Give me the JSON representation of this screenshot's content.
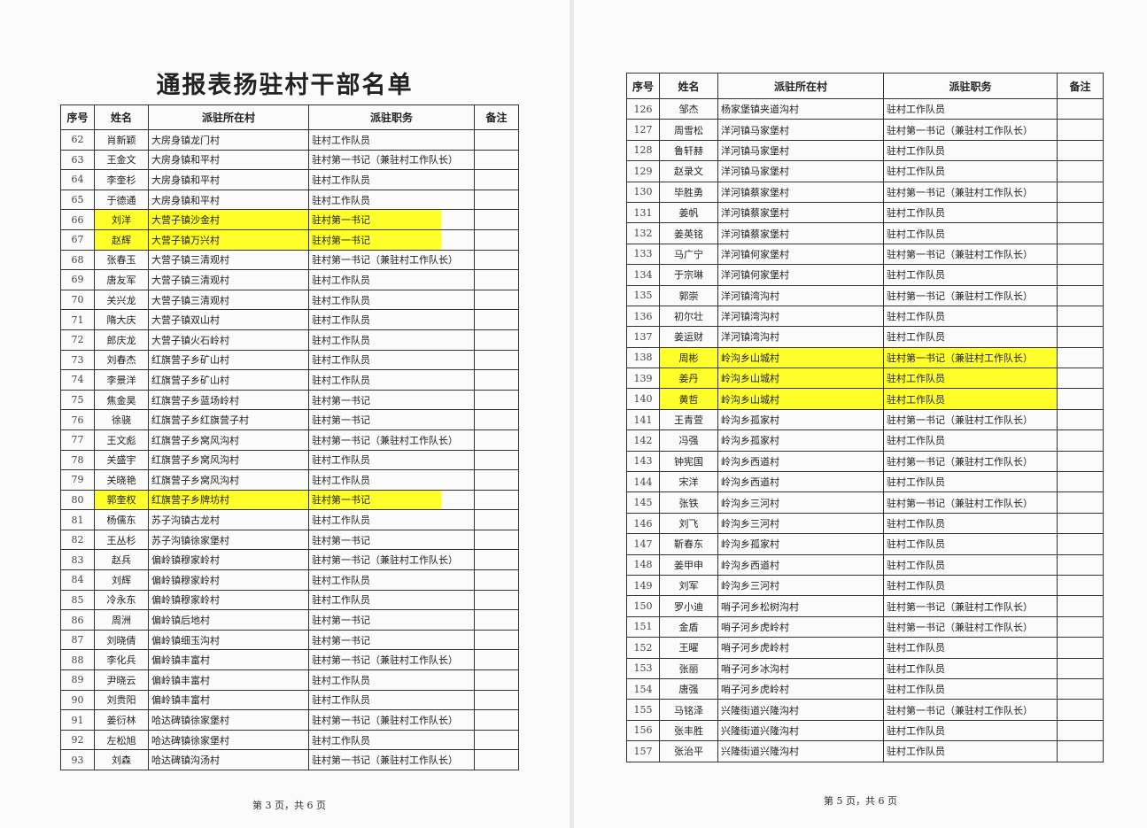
{
  "title": "通报表扬驻村干部名单",
  "headers": {
    "seq": "序号",
    "name": "姓名",
    "village": "派驻所在村",
    "duty": "派驻职务",
    "note": "备注"
  },
  "highlight_color": "#ffff2a",
  "left_page": {
    "footer": "第 3 页，共 6 页",
    "rows": [
      {
        "seq": "62",
        "name": "肖新颖",
        "village": "大房身镇龙门村",
        "duty": "驻村工作队员",
        "highlighted": false
      },
      {
        "seq": "63",
        "name": "王金文",
        "village": "大房身镇和平村",
        "duty": "驻村第一书记（兼驻村工作队长）",
        "highlighted": false
      },
      {
        "seq": "64",
        "name": "李奎杉",
        "village": "大房身镇和平村",
        "duty": "驻村工作队员",
        "highlighted": false
      },
      {
        "seq": "65",
        "name": "于德通",
        "village": "大房身镇和平村",
        "duty": "驻村工作队员",
        "highlighted": false
      },
      {
        "seq": "66",
        "name": "刘洋",
        "village": "大营子镇沙金村",
        "duty": "驻村第一书记",
        "highlighted": true
      },
      {
        "seq": "67",
        "name": "赵辉",
        "village": "大营子镇万兴村",
        "duty": "驻村第一书记",
        "highlighted": true
      },
      {
        "seq": "68",
        "name": "张春玉",
        "village": "大营子镇三清观村",
        "duty": "驻村第一书记（兼驻村工作队长）",
        "highlighted": false
      },
      {
        "seq": "69",
        "name": "唐友军",
        "village": "大营子镇三清观村",
        "duty": "驻村工作队员",
        "highlighted": false
      },
      {
        "seq": "70",
        "name": "关兴龙",
        "village": "大营子镇三清观村",
        "duty": "驻村工作队员",
        "highlighted": false
      },
      {
        "seq": "71",
        "name": "隋大庆",
        "village": "大营子镇双山村",
        "duty": "驻村工作队员",
        "highlighted": false
      },
      {
        "seq": "72",
        "name": "郎庆龙",
        "village": "大营子镇火石岭村",
        "duty": "驻村工作队员",
        "highlighted": false
      },
      {
        "seq": "73",
        "name": "刘春杰",
        "village": "红旗营子乡矿山村",
        "duty": "驻村工作队员",
        "highlighted": false
      },
      {
        "seq": "74",
        "name": "李景洋",
        "village": "红旗营子乡矿山村",
        "duty": "驻村工作队员",
        "highlighted": false
      },
      {
        "seq": "75",
        "name": "焦金昊",
        "village": "红旗营子乡蓝场岭村",
        "duty": "驻村第一书记",
        "highlighted": false
      },
      {
        "seq": "76",
        "name": "徐骁",
        "village": "红旗营子乡红旗营子村",
        "duty": "驻村第一书记",
        "highlighted": false
      },
      {
        "seq": "77",
        "name": "王文彪",
        "village": "红旗营子乡窝风沟村",
        "duty": "驻村第一书记（兼驻村工作队长）",
        "highlighted": false
      },
      {
        "seq": "78",
        "name": "关盛宇",
        "village": "红旗营子乡窝风沟村",
        "duty": "驻村工作队员",
        "highlighted": false
      },
      {
        "seq": "79",
        "name": "关晓艳",
        "village": "红旗营子乡窝风沟村",
        "duty": "驻村工作队员",
        "highlighted": false
      },
      {
        "seq": "80",
        "name": "郭奎权",
        "village": "红旗营子乡牌坊村",
        "duty": "驻村第一书记",
        "highlighted": true
      },
      {
        "seq": "81",
        "name": "杨儒东",
        "village": "苏子沟镇古龙村",
        "duty": "驻村工作队员",
        "highlighted": false
      },
      {
        "seq": "82",
        "name": "王丛杉",
        "village": "苏子沟镇徐家堡村",
        "duty": "驻村第一书记",
        "highlighted": false
      },
      {
        "seq": "83",
        "name": "赵兵",
        "village": "偏岭镇穆家岭村",
        "duty": "驻村第一书记（兼驻村工作队长）",
        "highlighted": false
      },
      {
        "seq": "84",
        "name": "刘辉",
        "village": "偏岭镇穆家岭村",
        "duty": "驻村工作队员",
        "highlighted": false
      },
      {
        "seq": "85",
        "name": "冷永东",
        "village": "偏岭镇穆家岭村",
        "duty": "驻村工作队员",
        "highlighted": false
      },
      {
        "seq": "86",
        "name": "周洲",
        "village": "偏岭镇后地村",
        "duty": "驻村第一书记",
        "highlighted": false
      },
      {
        "seq": "87",
        "name": "刘晓倩",
        "village": "偏岭镇细玉沟村",
        "duty": "驻村第一书记",
        "highlighted": false
      },
      {
        "seq": "88",
        "name": "李化兵",
        "village": "偏岭镇丰富村",
        "duty": "驻村第一书记（兼驻村工作队长）",
        "highlighted": false
      },
      {
        "seq": "89",
        "name": "尹晓云",
        "village": "偏岭镇丰富村",
        "duty": "驻村工作队员",
        "highlighted": false
      },
      {
        "seq": "90",
        "name": "刘贵阳",
        "village": "偏岭镇丰富村",
        "duty": "驻村工作队员",
        "highlighted": false
      },
      {
        "seq": "91",
        "name": "姜衍林",
        "village": "哈达碑镇徐家堡村",
        "duty": "驻村第一书记（兼驻村工作队长）",
        "highlighted": false
      },
      {
        "seq": "92",
        "name": "左松旭",
        "village": "哈达碑镇徐家堡村",
        "duty": "驻村工作队员",
        "highlighted": false
      },
      {
        "seq": "93",
        "name": "刘森",
        "village": "哈达碑镇沟汤村",
        "duty": "驻村第一书记（兼驻村工作队长）",
        "highlighted": false
      }
    ]
  },
  "right_page": {
    "footer": "第 5 页，共 6 页",
    "rows": [
      {
        "seq": "126",
        "name": "邹杰",
        "village": "杨家堡镇夹道沟村",
        "duty": "驻村工作队员",
        "highlighted": false
      },
      {
        "seq": "127",
        "name": "周雪松",
        "village": "洋河镇马家堡村",
        "duty": "驻村第一书记（兼驻村工作队长）",
        "highlighted": false
      },
      {
        "seq": "128",
        "name": "鲁轩赫",
        "village": "洋河镇马家堡村",
        "duty": "驻村工作队员",
        "highlighted": false
      },
      {
        "seq": "129",
        "name": "赵录文",
        "village": "洋河镇马家堡村",
        "duty": "驻村工作队员",
        "highlighted": false
      },
      {
        "seq": "130",
        "name": "毕胜勇",
        "village": "洋河镇蔡家堡村",
        "duty": "驻村第一书记（兼驻村工作队长）",
        "highlighted": false
      },
      {
        "seq": "131",
        "name": "姜帆",
        "village": "洋河镇蔡家堡村",
        "duty": "驻村工作队员",
        "highlighted": false
      },
      {
        "seq": "132",
        "name": "姜英铭",
        "village": "洋河镇蔡家堡村",
        "duty": "驻村工作队员",
        "highlighted": false
      },
      {
        "seq": "133",
        "name": "马广宁",
        "village": "洋河镇何家堡村",
        "duty": "驻村第一书记（兼驻村工作队长）",
        "highlighted": false
      },
      {
        "seq": "134",
        "name": "于宗琳",
        "village": "洋河镇何家堡村",
        "duty": "驻村工作队员",
        "highlighted": false
      },
      {
        "seq": "135",
        "name": "郭崇",
        "village": "洋河镇湾沟村",
        "duty": "驻村第一书记（兼驻村工作队长）",
        "highlighted": false
      },
      {
        "seq": "136",
        "name": "初尔壮",
        "village": "洋河镇湾沟村",
        "duty": "驻村工作队员",
        "highlighted": false
      },
      {
        "seq": "137",
        "name": "姜运财",
        "village": "洋河镇湾沟村",
        "duty": "驻村工作队员",
        "highlighted": false
      },
      {
        "seq": "138",
        "name": "周彬",
        "village": "岭沟乡山城村",
        "duty": "驻村第一书记（兼驻村工作队长）",
        "highlighted": true
      },
      {
        "seq": "139",
        "name": "姜丹",
        "village": "岭沟乡山城村",
        "duty": "驻村工作队员",
        "highlighted": true
      },
      {
        "seq": "140",
        "name": "黄哲",
        "village": "岭沟乡山城村",
        "duty": "驻村工作队员",
        "highlighted": true
      },
      {
        "seq": "141",
        "name": "王青萱",
        "village": "岭沟乡孤家村",
        "duty": "驻村第一书记（兼驻村工作队长）",
        "highlighted": false
      },
      {
        "seq": "142",
        "name": "冯强",
        "village": "岭沟乡孤家村",
        "duty": "驻村工作队员",
        "highlighted": false
      },
      {
        "seq": "143",
        "name": "钟宪国",
        "village": "岭沟乡西道村",
        "duty": "驻村第一书记（兼驻村工作队长）",
        "highlighted": false
      },
      {
        "seq": "144",
        "name": "宋洋",
        "village": "岭沟乡西道村",
        "duty": "驻村工作队员",
        "highlighted": false
      },
      {
        "seq": "145",
        "name": "张铁",
        "village": "岭沟乡三河村",
        "duty": "驻村第一书记（兼驻村工作队长）",
        "highlighted": false
      },
      {
        "seq": "146",
        "name": "刘飞",
        "village": "岭沟乡三河村",
        "duty": "驻村工作队员",
        "highlighted": false
      },
      {
        "seq": "147",
        "name": "靳春东",
        "village": "岭沟乡孤家村",
        "duty": "驻村工作队员",
        "highlighted": false
      },
      {
        "seq": "148",
        "name": "姜甲申",
        "village": "岭沟乡西道村",
        "duty": "驻村工作队员",
        "highlighted": false
      },
      {
        "seq": "149",
        "name": "刘军",
        "village": "岭沟乡三河村",
        "duty": "驻村工作队员",
        "highlighted": false
      },
      {
        "seq": "150",
        "name": "罗小迪",
        "village": "哨子河乡松树沟村",
        "duty": "驻村第一书记（兼驻村工作队长）",
        "highlighted": false
      },
      {
        "seq": "151",
        "name": "金盾",
        "village": "哨子河乡虎岭村",
        "duty": "驻村第一书记（兼驻村工作队长）",
        "highlighted": false
      },
      {
        "seq": "152",
        "name": "王曜",
        "village": "哨子河乡虎岭村",
        "duty": "驻村工作队员",
        "highlighted": false
      },
      {
        "seq": "153",
        "name": "张丽",
        "village": "哨子河乡冰沟村",
        "duty": "驻村工作队员",
        "highlighted": false
      },
      {
        "seq": "154",
        "name": "唐强",
        "village": "哨子河乡虎岭村",
        "duty": "驻村工作队员",
        "highlighted": false
      },
      {
        "seq": "155",
        "name": "马铭泽",
        "village": "兴隆街道兴隆沟村",
        "duty": "驻村第一书记（兼驻村工作队长）",
        "highlighted": false
      },
      {
        "seq": "156",
        "name": "张丰胜",
        "village": "兴隆街道兴隆沟村",
        "duty": "驻村工作队员",
        "highlighted": false
      },
      {
        "seq": "157",
        "name": "张治平",
        "village": "兴隆街道兴隆沟村",
        "duty": "驻村工作队员",
        "highlighted": false
      }
    ]
  }
}
